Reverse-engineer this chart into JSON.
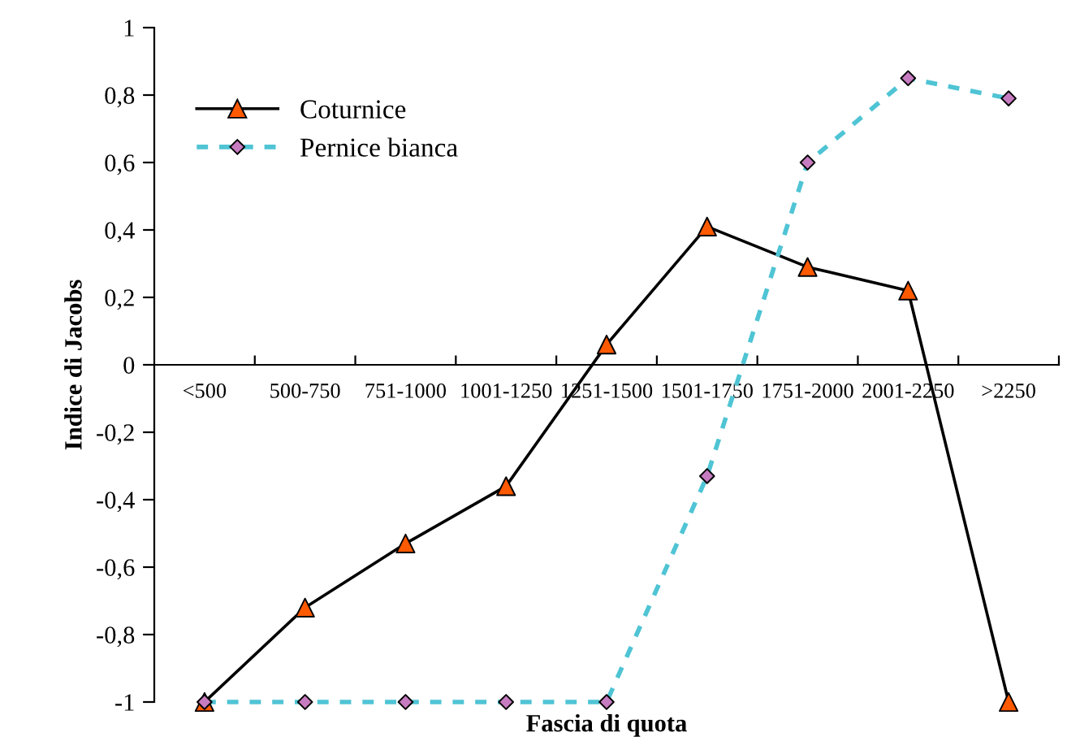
{
  "chart_data": {
    "type": "line",
    "xlabel": "Fascia di quota",
    "ylabel": "Indice di Jacobs",
    "categories": [
      "<500",
      "500-750",
      "751-1000",
      "1001-1250",
      "1251-1500",
      "1501-1750",
      "1751-2000",
      "2001-2250",
      ">2250"
    ],
    "series": [
      {
        "name": "Coturnice",
        "color": "#000000",
        "marker": "triangle",
        "colors": [
          "#ff5a00",
          "#ff5a00",
          "#ff5a00",
          "#ff5a00",
          "#ff5a00",
          "#ff5a00",
          "#ff5a00",
          "#ff5a00",
          "#ff5a00"
        ],
        "line_style": "solid",
        "values": [
          -1,
          -0.72,
          -0.53,
          -0.36,
          0.06,
          0.41,
          0.29,
          0.22,
          -1
        ]
      },
      {
        "name": "Pernice bianca",
        "color": "#4fc4d4",
        "marker": "diamond",
        "colors": [
          "#c77bc0",
          "#c77bc0",
          "#c77bc0",
          "#c77bc0",
          "#c77bc0",
          "#c77bc0",
          "#c77bc0",
          "#c77bc0",
          "#c77bc0"
        ],
        "line_style": "dashed",
        "values": [
          -1,
          -1,
          -1,
          -1,
          -1,
          -0.33,
          0.6,
          0.85,
          0.79
        ]
      }
    ],
    "ylim": [
      -1,
      1
    ],
    "yticks": [
      {
        "value": -1,
        "label": "-1"
      },
      {
        "value": -0.8,
        "label": "-0,8"
      },
      {
        "value": -0.6,
        "label": "-0,6"
      },
      {
        "value": -0.4,
        "label": "-0,4"
      },
      {
        "value": -0.2,
        "label": "-0,2"
      },
      0,
      {
        "value": 0.2,
        "label": "0,2"
      },
      {
        "value": 0.4,
        "label": "0,4"
      },
      {
        "value": 0.6,
        "label": "0,6"
      },
      {
        "value": 0.8,
        "label": "0,8"
      },
      1
    ],
    "grid": false,
    "legend": "top left"
  }
}
